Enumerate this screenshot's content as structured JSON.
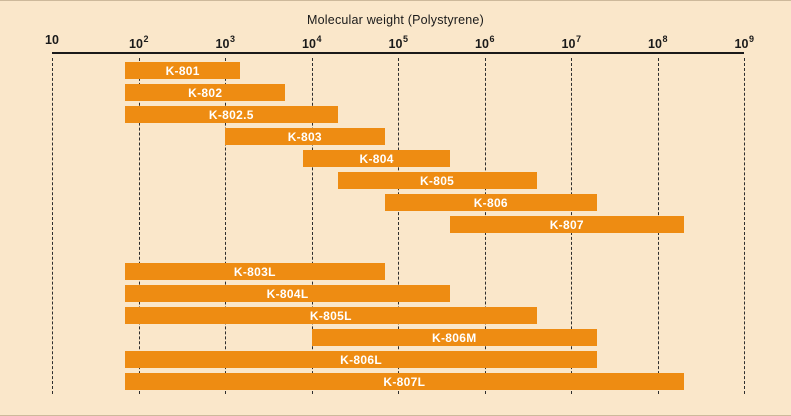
{
  "colors": {
    "background": "#FAE7CA",
    "bar": "#EE8C12",
    "bar_text": "#FFFFFF",
    "axis": "#1a1a1a",
    "grid": "#2e2e2e",
    "text": "#1a1a1a"
  },
  "chart_data": {
    "type": "bar",
    "subtype": "horizontal-range-bars",
    "x_scale": "log10",
    "title": "Molecular weight (Polystyrene)",
    "xlabel": "Molecular weight (Polystyrene)",
    "ylabel": "",
    "xlim": [
      10,
      1000000000
    ],
    "grid": "vertical-dashed-at-each-decade",
    "legend": "none",
    "x_ticks": [
      {
        "base": "10",
        "exp": "",
        "value": 10
      },
      {
        "base": "10",
        "exp": "2",
        "value": 100
      },
      {
        "base": "10",
        "exp": "3",
        "value": 1000
      },
      {
        "base": "10",
        "exp": "4",
        "value": 10000
      },
      {
        "base": "10",
        "exp": "5",
        "value": 100000
      },
      {
        "base": "10",
        "exp": "6",
        "value": 1000000
      },
      {
        "base": "10",
        "exp": "7",
        "value": 10000000
      },
      {
        "base": "10",
        "exp": "8",
        "value": 100000000
      },
      {
        "base": "10",
        "exp": "9",
        "value": 1000000000
      }
    ],
    "bars": [
      {
        "name": "K-801",
        "group": 0,
        "range": [
          70,
          1500
        ]
      },
      {
        "name": "K-802",
        "group": 0,
        "range": [
          70,
          5000
        ]
      },
      {
        "name": "K-802.5",
        "group": 0,
        "range": [
          70,
          20000
        ]
      },
      {
        "name": "K-803",
        "group": 0,
        "range": [
          1000,
          70000
        ]
      },
      {
        "name": "K-804",
        "group": 0,
        "range": [
          8000,
          400000
        ]
      },
      {
        "name": "K-805",
        "group": 0,
        "range": [
          20000,
          4000000
        ]
      },
      {
        "name": "K-806",
        "group": 0,
        "range": [
          70000,
          20000000
        ]
      },
      {
        "name": "K-807",
        "group": 0,
        "range": [
          400000,
          200000000
        ]
      },
      {
        "name": "K-803L",
        "group": 1,
        "range": [
          70,
          70000
        ]
      },
      {
        "name": "K-804L",
        "group": 1,
        "range": [
          70,
          400000
        ]
      },
      {
        "name": "K-805L",
        "group": 1,
        "range": [
          70,
          4000000
        ]
      },
      {
        "name": "K-806M",
        "group": 1,
        "range": [
          10000,
          20000000
        ]
      },
      {
        "name": "K-806L",
        "group": 1,
        "range": [
          70,
          20000000
        ]
      },
      {
        "name": "K-807L",
        "group": 1,
        "range": [
          70,
          200000000
        ]
      }
    ]
  }
}
